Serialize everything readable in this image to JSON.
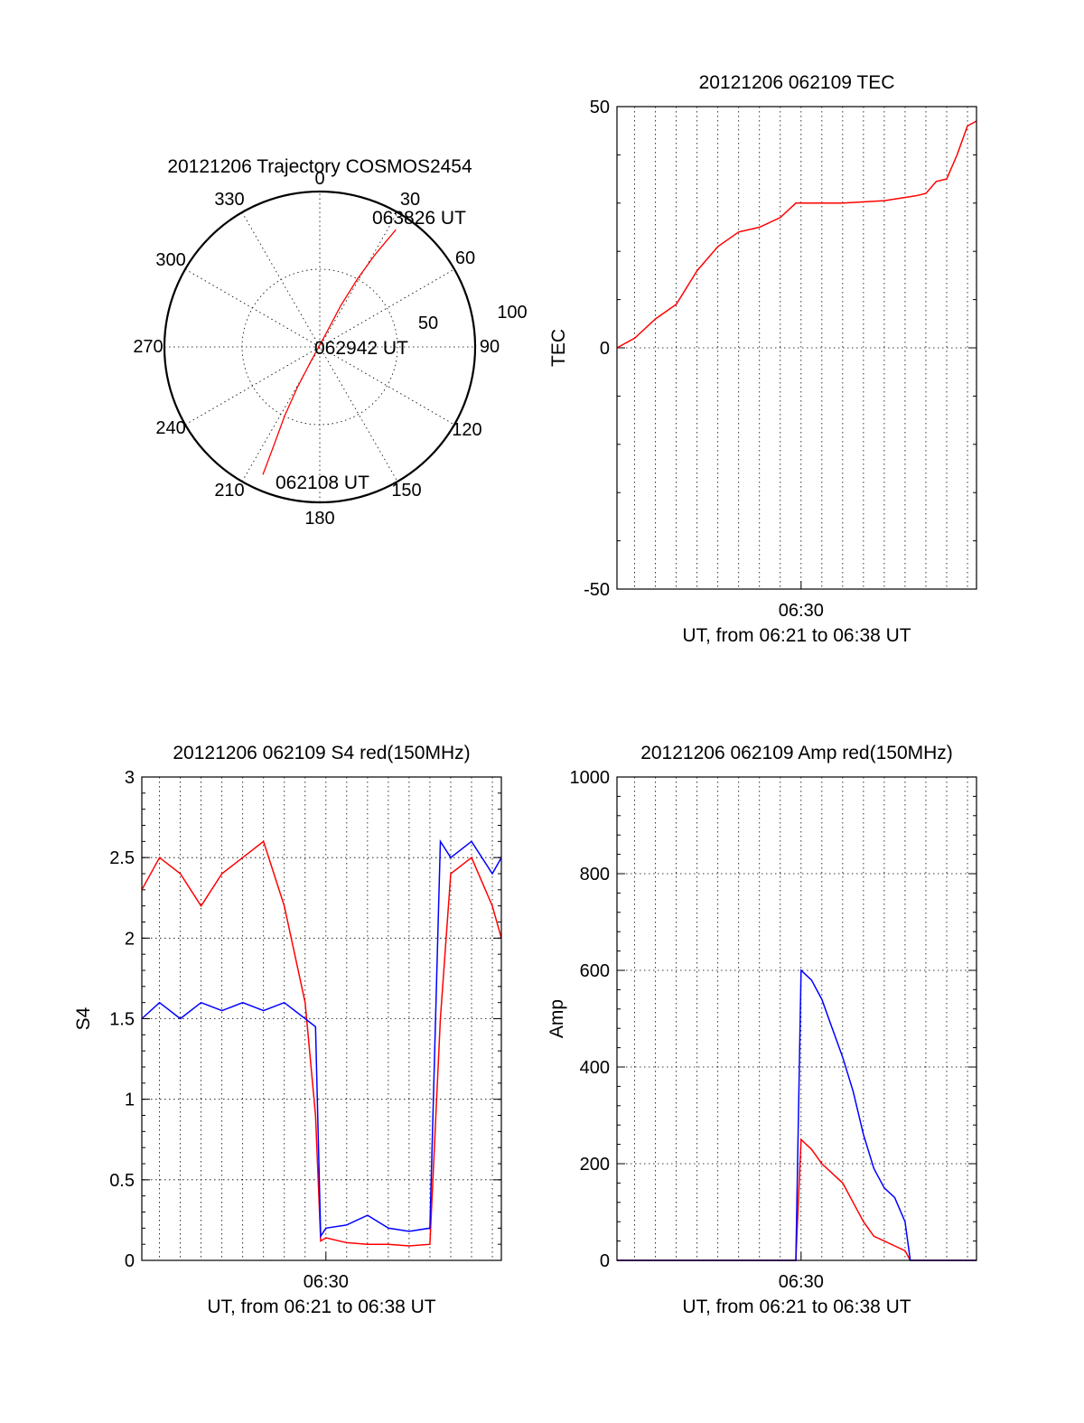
{
  "colors": {
    "primary": "#ff0000",
    "secondary": "#0000ff",
    "axis": "#000000"
  },
  "polar": {
    "title": "20121206 Trajectory COSMOS2454",
    "azimuth_labels": [
      "0",
      "30",
      "60",
      "90",
      "120",
      "150",
      "180",
      "210",
      "240",
      "270",
      "300",
      "330"
    ],
    "radial_labels": [
      "50",
      "100"
    ],
    "start_label": "062108 UT",
    "mid_label": "062942 UT",
    "end_label": "063826 UT"
  },
  "chart_data": [
    {
      "id": "trajectory",
      "type": "polar-line",
      "title": "20121206 Trajectory COSMOS2454",
      "angle_unit": "azimuth degrees",
      "radial_unit": "zenith angle degrees",
      "rlim": [
        0,
        100
      ],
      "grid": true,
      "points": [
        {
          "az": 204,
          "r": 90
        },
        {
          "az": 205,
          "r": 70
        },
        {
          "az": 207,
          "r": 50
        },
        {
          "az": 209,
          "r": 30
        },
        {
          "az": 212,
          "r": 10
        },
        {
          "az": 25,
          "r": 10
        },
        {
          "az": 27,
          "r": 30
        },
        {
          "az": 29,
          "r": 50
        },
        {
          "az": 31,
          "r": 70
        },
        {
          "az": 33,
          "r": 90
        }
      ]
    },
    {
      "id": "tec",
      "type": "line",
      "title": "20121206 062109 TEC",
      "xlabel": "UT, from 06:21 to 06:38 UT",
      "ylabel": "TEC",
      "xlim": [
        "06:21:09",
        "06:38:26"
      ],
      "ylim": [
        -50,
        50
      ],
      "y_ticks": [
        "-50",
        "0",
        "50"
      ],
      "x_ticks": [
        "06:30"
      ],
      "grid": true,
      "x": [
        "06:21:09",
        "06:22:00",
        "06:23:00",
        "06:24:00",
        "06:25:00",
        "06:26:00",
        "06:27:00",
        "06:28:00",
        "06:29:00",
        "06:29:45",
        "06:30:30",
        "06:32:00",
        "06:34:00",
        "06:35:30",
        "06:36:00",
        "06:36:30",
        "06:37:00",
        "06:37:30",
        "06:38:00",
        "06:38:26"
      ],
      "series": [
        {
          "color": "#ff0000",
          "values": [
            0,
            2,
            6,
            9,
            16,
            21,
            24,
            25,
            27,
            30,
            30,
            30,
            30.5,
            31.5,
            32,
            34.5,
            35,
            40,
            46,
            47
          ]
        }
      ]
    },
    {
      "id": "s4",
      "type": "line",
      "title": "20121206 062109 S4 red(150MHz)",
      "xlabel": "UT, from 06:21 to 06:38 UT",
      "ylabel": "S4",
      "xlim": [
        "06:21:09",
        "06:38:26"
      ],
      "ylim": [
        0,
        3
      ],
      "y_ticks": [
        "0",
        "0.5",
        "1",
        "1.5",
        "2",
        "2.5",
        "3"
      ],
      "x_ticks": [
        "06:30"
      ],
      "grid": true,
      "x": [
        "06:21:09",
        "06:22:00",
        "06:23:00",
        "06:24:00",
        "06:25:00",
        "06:26:00",
        "06:27:00",
        "06:28:00",
        "06:29:00",
        "06:29:30",
        "06:29:45",
        "06:30:00",
        "06:31:00",
        "06:32:00",
        "06:33:00",
        "06:34:00",
        "06:35:00",
        "06:35:30",
        "06:36:00",
        "06:37:00",
        "06:38:00",
        "06:38:26"
      ],
      "series": [
        {
          "color": "#ff0000",
          "values": [
            2.3,
            2.5,
            2.4,
            2.2,
            2.4,
            2.5,
            2.6,
            2.2,
            1.6,
            0.9,
            0.12,
            0.14,
            0.11,
            0.1,
            0.1,
            0.09,
            0.1,
            1.5,
            2.4,
            2.5,
            2.2,
            2.0
          ]
        },
        {
          "color": "#0000ff",
          "values": [
            1.5,
            1.6,
            1.5,
            1.6,
            1.55,
            1.6,
            1.55,
            1.6,
            1.5,
            1.45,
            0.15,
            0.2,
            0.22,
            0.28,
            0.2,
            0.18,
            0.2,
            2.6,
            2.5,
            2.6,
            2.4,
            2.5
          ]
        }
      ]
    },
    {
      "id": "amp",
      "type": "line",
      "title": "20121206 062109 Amp red(150MHz)",
      "xlabel": "UT, from 06:21 to 06:38 UT",
      "ylabel": "Amp",
      "xlim": [
        "06:21:09",
        "06:38:26"
      ],
      "ylim": [
        0,
        1000
      ],
      "y_ticks": [
        "0",
        "200",
        "400",
        "600",
        "800",
        "1000"
      ],
      "x_ticks": [
        "06:30"
      ],
      "grid": true,
      "x": [
        "06:21:09",
        "06:25:00",
        "06:29:00",
        "06:29:45",
        "06:30:00",
        "06:30:30",
        "06:31:00",
        "06:31:30",
        "06:32:00",
        "06:32:30",
        "06:33:00",
        "06:33:30",
        "06:34:00",
        "06:34:30",
        "06:35:00",
        "06:35:15",
        "06:36:00",
        "06:38:26"
      ],
      "series": [
        {
          "color": "#ff0000",
          "values": [
            0,
            0,
            0,
            0,
            250,
            230,
            200,
            180,
            160,
            120,
            80,
            50,
            40,
            30,
            20,
            0,
            0,
            0
          ]
        },
        {
          "color": "#0000ff",
          "values": [
            0,
            0,
            0,
            0,
            600,
            580,
            540,
            480,
            420,
            350,
            260,
            190,
            150,
            130,
            80,
            0,
            0,
            0
          ]
        }
      ]
    }
  ]
}
